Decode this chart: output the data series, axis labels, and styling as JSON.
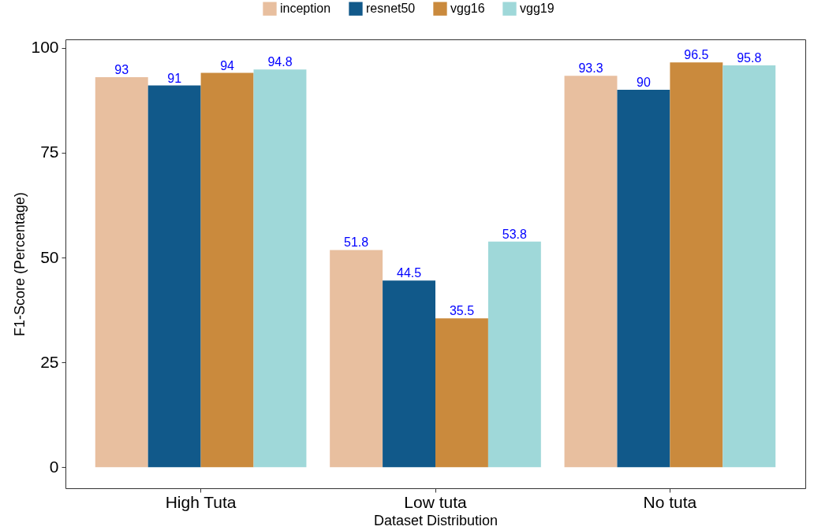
{
  "chart_data": {
    "type": "bar",
    "xlabel": "Dataset Distribution",
    "ylabel": "F1-Score (Percentage)",
    "categories": [
      "High Tuta",
      "Low tuta",
      "No tuta"
    ],
    "series": [
      {
        "name": "inception",
        "color": "#e8bf9f",
        "values": [
          93,
          51.8,
          93.3
        ]
      },
      {
        "name": "resnet50",
        "color": "#11598a",
        "values": [
          91,
          44.5,
          90
        ]
      },
      {
        "name": "vgg16",
        "color": "#ca8a3d",
        "values": [
          94,
          35.5,
          96.5
        ]
      },
      {
        "name": "vgg19",
        "color": "#9fd8d9",
        "values": [
          94.8,
          53.8,
          95.8
        ]
      }
    ],
    "ylim": [
      -5,
      102
    ],
    "yticks": [
      0,
      25,
      50,
      75,
      100
    ],
    "grid": false,
    "legend": "top",
    "data_labels": true
  }
}
